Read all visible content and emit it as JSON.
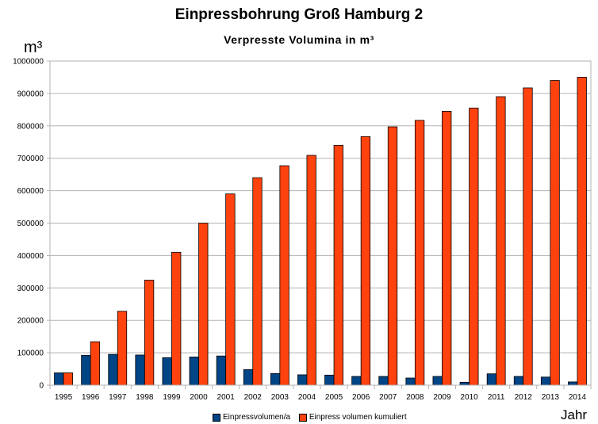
{
  "chart_data": {
    "type": "bar",
    "title": "Einpressbohrung Groß Hamburg 2",
    "subtitle": "Verpresste Volumina in m³",
    "ylabel": "m³",
    "xlabel": "Jahr",
    "ylim": [
      0,
      1000000
    ],
    "yticks": [
      0,
      100000,
      200000,
      300000,
      400000,
      500000,
      600000,
      700000,
      800000,
      900000,
      1000000
    ],
    "grid": true,
    "legend_position": "bottom",
    "categories": [
      "1995",
      "1996",
      "1997",
      "1998",
      "1999",
      "2000",
      "2001",
      "2002",
      "2003",
      "2004",
      "2005",
      "2006",
      "2007",
      "2008",
      "2009",
      "2010",
      "2011",
      "2012",
      "2013",
      "2014"
    ],
    "series": [
      {
        "name": "Einpressvolumen/a",
        "color": "#004586",
        "values": [
          38000,
          92000,
          95000,
          93000,
          85000,
          87000,
          90000,
          48000,
          36000,
          32000,
          31000,
          27000,
          27000,
          22000,
          27000,
          9000,
          35000,
          27000,
          25000,
          10000
        ]
      },
      {
        "name": "Einpress volumen kumuliert",
        "color": "#ff420e",
        "values": [
          38000,
          134000,
          228000,
          324000,
          410000,
          500000,
          590000,
          640000,
          677000,
          709000,
          740000,
          767000,
          797000,
          817000,
          845000,
          855000,
          890000,
          917000,
          940000,
          950000
        ]
      }
    ]
  }
}
